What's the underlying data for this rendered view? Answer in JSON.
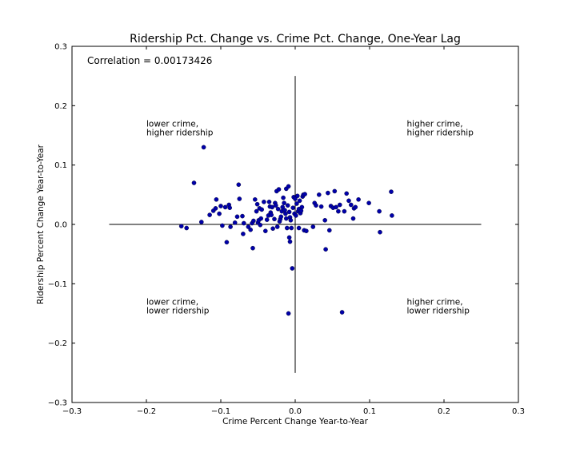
{
  "chart_data": {
    "type": "scatter",
    "title": "Ridership Pct. Change vs. Crime Pct. Change, One-Year Lag",
    "xlabel": "Crime Percent Change Year-to-Year",
    "ylabel": "Ridership Percent Change Year-to-Year",
    "xlim": [
      -0.3,
      0.3
    ],
    "ylim": [
      -0.3,
      0.3
    ],
    "xticks": [
      "−0.3",
      "−0.2",
      "−0.1",
      "0.0",
      "0.1",
      "0.2",
      "0.3"
    ],
    "xtick_values": [
      -0.3,
      -0.2,
      -0.1,
      0.0,
      0.1,
      0.2,
      0.3
    ],
    "yticks": [
      "−0.3",
      "−0.2",
      "−0.1",
      "0.0",
      "0.1",
      "0.2",
      "0.3"
    ],
    "ytick_values": [
      -0.3,
      -0.2,
      -0.1,
      0.0,
      0.1,
      0.2,
      0.3
    ],
    "grid": false,
    "marker_color": "#0000aa",
    "correlation_text": "Correlation = 0.00173426",
    "reference_lines": [
      {
        "orientation": "horizontal",
        "at": 0.0,
        "from": -0.25,
        "to": 0.25
      },
      {
        "orientation": "vertical",
        "at": 0.0,
        "from": -0.25,
        "to": 0.25
      }
    ],
    "annotations": [
      {
        "lines": [
          "lower crime,",
          "higher ridership"
        ],
        "x": -0.2,
        "y": 0.165
      },
      {
        "lines": [
          "higher crime,",
          "higher ridership"
        ],
        "x": 0.15,
        "y": 0.165
      },
      {
        "lines": [
          "lower crime,",
          "lower ridership"
        ],
        "x": -0.2,
        "y": -0.135
      },
      {
        "lines": [
          "higher crime,",
          "lower ridership"
        ],
        "x": 0.15,
        "y": -0.135
      }
    ],
    "points": [
      [
        -0.153,
        -0.003
      ],
      [
        -0.146,
        -0.006
      ],
      [
        -0.136,
        0.07
      ],
      [
        -0.126,
        0.004
      ],
      [
        -0.123,
        0.13
      ],
      [
        -0.115,
        0.016
      ],
      [
        -0.11,
        0.023
      ],
      [
        -0.107,
        0.027
      ],
      [
        -0.106,
        0.042
      ],
      [
        -0.102,
        0.018
      ],
      [
        -0.1,
        0.031
      ],
      [
        -0.098,
        -0.002
      ],
      [
        -0.094,
        0.029
      ],
      [
        -0.092,
        -0.03
      ],
      [
        -0.089,
        0.033
      ],
      [
        -0.088,
        0.028
      ],
      [
        -0.087,
        -0.004
      ],
      [
        -0.081,
        0.003
      ],
      [
        -0.078,
        0.013
      ],
      [
        -0.076,
        0.067
      ],
      [
        -0.075,
        0.043
      ],
      [
        -0.071,
        0.014
      ],
      [
        -0.07,
        -0.016
      ],
      [
        -0.069,
        0.002
      ],
      [
        -0.063,
        -0.004
      ],
      [
        -0.06,
        -0.009
      ],
      [
        -0.058,
        0.002
      ],
      [
        -0.057,
        -0.04
      ],
      [
        -0.056,
        0.006
      ],
      [
        -0.054,
        0.042
      ],
      [
        -0.052,
        0.022
      ],
      [
        -0.051,
        0.034
      ],
      [
        -0.05,
        0.003
      ],
      [
        -0.049,
        0.007
      ],
      [
        -0.048,
        0.027
      ],
      [
        -0.047,
        -0.001
      ],
      [
        -0.046,
        0.01
      ],
      [
        -0.045,
        0.025
      ],
      [
        -0.042,
        0.038
      ],
      [
        -0.04,
        -0.011
      ],
      [
        -0.038,
        0.008
      ],
      [
        -0.036,
        0.015
      ],
      [
        -0.035,
        0.038
      ],
      [
        -0.034,
        0.03
      ],
      [
        -0.033,
        0.02
      ],
      [
        -0.032,
        0.016
      ],
      [
        -0.031,
        0.029
      ],
      [
        -0.03,
        -0.007
      ],
      [
        -0.028,
        0.009
      ],
      [
        -0.027,
        0.036
      ],
      [
        -0.026,
        0.032
      ],
      [
        -0.025,
        0.056
      ],
      [
        -0.024,
        -0.004
      ],
      [
        -0.023,
        0.026
      ],
      [
        -0.022,
        0.059
      ],
      [
        -0.021,
        0.005
      ],
      [
        -0.02,
        0.009
      ],
      [
        -0.019,
        0.013
      ],
      [
        -0.018,
        0.022
      ],
      [
        -0.017,
        0.029
      ],
      [
        -0.016,
        0.045
      ],
      [
        -0.015,
        0.036
      ],
      [
        -0.014,
        0.024
      ],
      [
        -0.013,
        0.018
      ],
      [
        -0.012,
        0.01
      ],
      [
        -0.012,
        0.06
      ],
      [
        -0.011,
        -0.006
      ],
      [
        -0.01,
        0.032
      ],
      [
        -0.009,
        -0.15
      ],
      [
        -0.009,
        0.064
      ],
      [
        -0.008,
        0.021
      ],
      [
        -0.008,
        -0.022
      ],
      [
        -0.007,
        -0.029
      ],
      [
        -0.007,
        0.012
      ],
      [
        -0.006,
        0.007
      ],
      [
        -0.005,
        -0.006
      ],
      [
        -0.004,
        -0.074
      ],
      [
        -0.003,
        0.028
      ],
      [
        -0.002,
        0.046
      ],
      [
        -0.001,
        0.018
      ],
      [
        0.0,
        0.043
      ],
      [
        0.001,
        0.015
      ],
      [
        0.002,
        0.035
      ],
      [
        0.003,
        0.048
      ],
      [
        0.004,
        0.022
      ],
      [
        0.005,
        -0.006
      ],
      [
        0.005,
        0.026
      ],
      [
        0.006,
        0.04
      ],
      [
        0.007,
        0.019
      ],
      [
        0.008,
        0.023
      ],
      [
        0.009,
        0.029
      ],
      [
        0.01,
        0.047
      ],
      [
        0.011,
        0.05
      ],
      [
        0.012,
        -0.01
      ],
      [
        0.013,
        0.051
      ],
      [
        0.015,
        -0.011
      ],
      [
        0.024,
        -0.004
      ],
      [
        0.026,
        0.036
      ],
      [
        0.028,
        0.032
      ],
      [
        0.032,
        0.05
      ],
      [
        0.035,
        0.03
      ],
      [
        0.04,
        0.007
      ],
      [
        0.041,
        -0.042
      ],
      [
        0.044,
        0.053
      ],
      [
        0.046,
        -0.01
      ],
      [
        0.048,
        0.031
      ],
      [
        0.051,
        0.028
      ],
      [
        0.053,
        0.056
      ],
      [
        0.055,
        0.029
      ],
      [
        0.058,
        0.022
      ],
      [
        0.06,
        0.033
      ],
      [
        0.063,
        -0.148
      ],
      [
        0.066,
        0.022
      ],
      [
        0.069,
        0.052
      ],
      [
        0.072,
        0.04
      ],
      [
        0.075,
        0.033
      ],
      [
        0.078,
        0.01
      ],
      [
        0.079,
        0.027
      ],
      [
        0.081,
        0.029
      ],
      [
        0.085,
        0.042
      ],
      [
        0.099,
        0.036
      ],
      [
        0.113,
        0.022
      ],
      [
        0.114,
        -0.013
      ],
      [
        0.129,
        0.055
      ],
      [
        0.13,
        0.015
      ]
    ]
  }
}
